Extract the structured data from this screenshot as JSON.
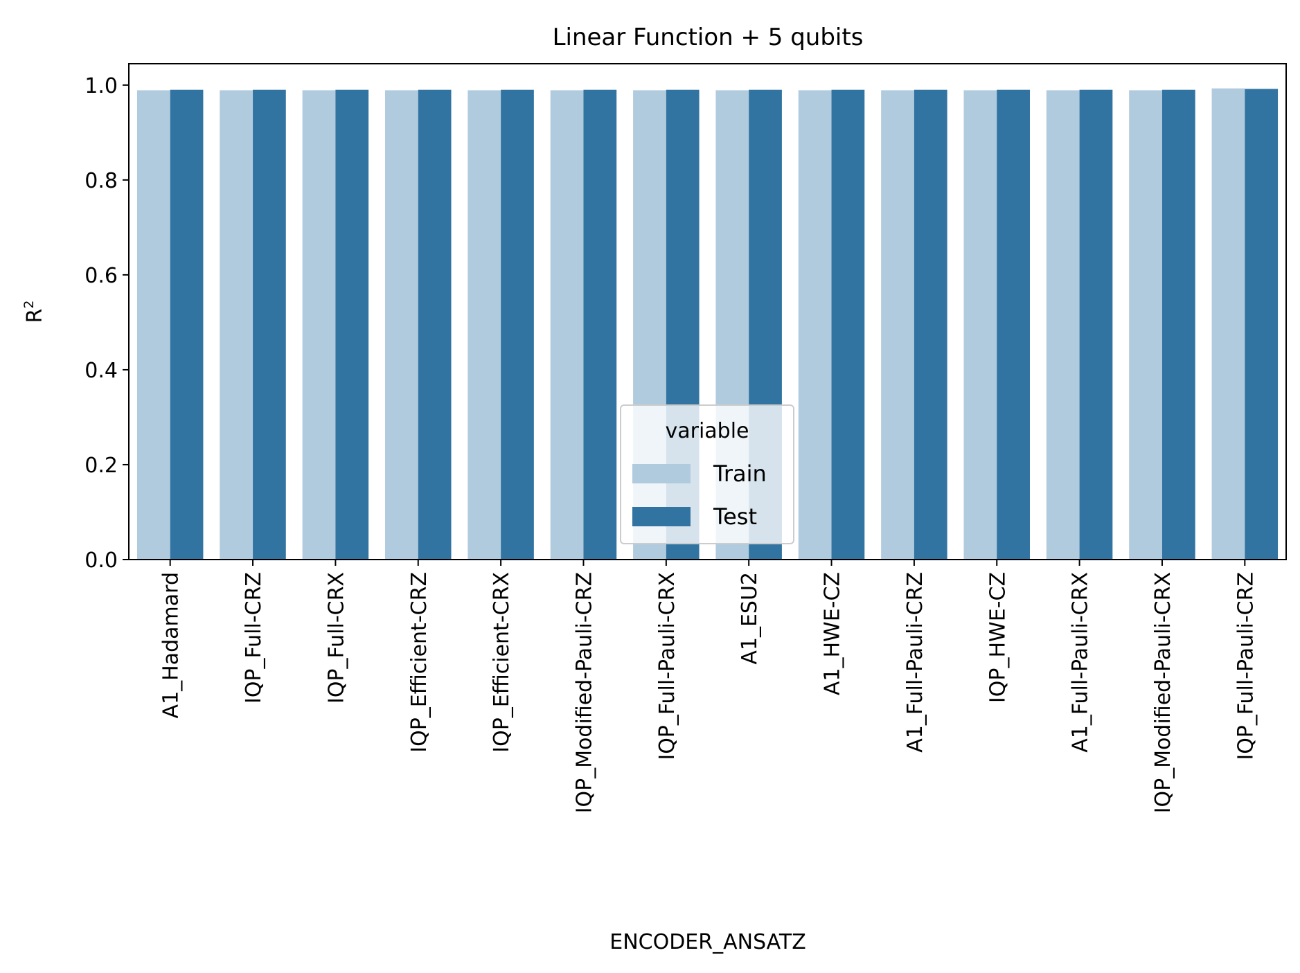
{
  "chart_data": {
    "type": "bar",
    "title": "Linear Function + 5 qubits",
    "xlabel": "ENCODER_ANSATZ",
    "ylabel_base": "R",
    "ylabel_sup": "2",
    "ylim": [
      0,
      1.045
    ],
    "yticks": [
      "0.0",
      "0.2",
      "0.4",
      "0.6",
      "0.8",
      "1.0"
    ],
    "grid": false,
    "legend": {
      "title": "variable",
      "placement": "lower-center"
    },
    "categories": [
      "A1_Hadamard",
      "IQP_Full-CRZ",
      "IQP_Full-CRX",
      "IQP_Efficient-CRZ",
      "IQP_Efficient-CRX",
      "IQP_Modified-Pauli-CRZ",
      "IQP_Full-Pauli-CRX",
      "A1_ESU2",
      "A1_HWE-CZ",
      "A1_Full-Pauli-CRZ",
      "IQP_HWE-CZ",
      "A1_Full-Pauli-CRX",
      "IQP_Modified-Pauli-CRX",
      "IQP_Full-Pauli-CRZ"
    ],
    "series": [
      {
        "name": "Train",
        "color": "#b0cbde",
        "values": [
          0.989,
          0.989,
          0.989,
          0.989,
          0.989,
          0.989,
          0.989,
          0.989,
          0.989,
          0.989,
          0.989,
          0.989,
          0.989,
          0.993
        ]
      },
      {
        "name": "Test",
        "color": "#3274a1",
        "values": [
          0.99,
          0.99,
          0.99,
          0.99,
          0.99,
          0.99,
          0.99,
          0.99,
          0.99,
          0.99,
          0.99,
          0.99,
          0.99,
          0.992
        ]
      }
    ]
  }
}
